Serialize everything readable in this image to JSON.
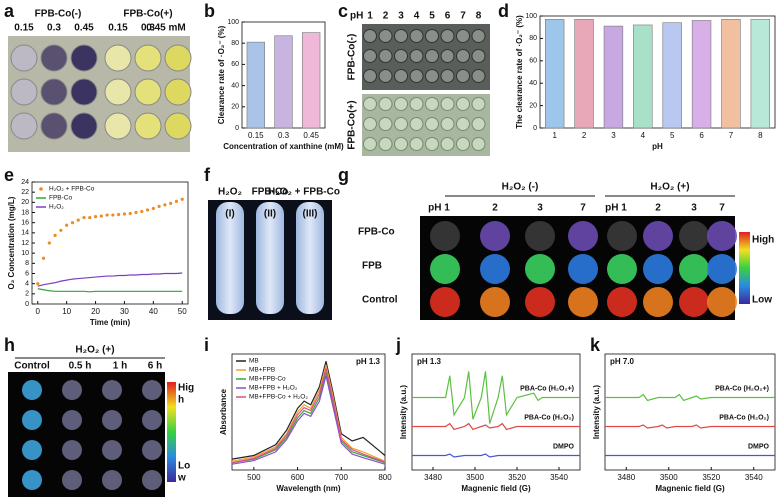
{
  "panel_letters": [
    "a",
    "b",
    "c",
    "d",
    "e",
    "f",
    "g",
    "h",
    "i",
    "j",
    "k"
  ],
  "photos": {
    "a": {
      "groups": [
        "FPB-Co(-)",
        "FPB-Co(+)"
      ],
      "concentrations": [
        "0.15",
        "0.3",
        "0.45",
        "0.15",
        "0.3",
        "0.45 mM"
      ]
    },
    "c": {
      "ph_label": "pH",
      "ph": [
        "1",
        "2",
        "3",
        "4",
        "5",
        "6",
        "7",
        "8"
      ],
      "rows": [
        "FPB-Co(-)",
        "FPB-Co(+)"
      ]
    },
    "f": {
      "tubes": [
        "H₂O₂",
        "FPB-Co",
        "H₂O₂ + FPB-Co"
      ],
      "numerals": [
        "(I)",
        "(II)",
        "(III)"
      ]
    },
    "g": {
      "conditions": [
        "H₂O₂ (-)",
        "H₂O₂ (+)"
      ],
      "ph": [
        "pH 1",
        "2",
        "3",
        "7",
        "pH 1",
        "2",
        "3",
        "7"
      ],
      "rows": [
        "FPB-Co",
        "FPB",
        "Control"
      ],
      "scale": [
        "High",
        "Low"
      ]
    },
    "h": {
      "condition": "H₂O₂ (+)",
      "times": [
        "Control",
        "0.5 h",
        "1 h",
        "6 h"
      ],
      "scale_high": [
        "Hig",
        "h"
      ],
      "scale_low": [
        "Lo",
        "w"
      ]
    }
  },
  "chart_data": [
    {
      "type": "bar",
      "categories": [
        "0.15",
        "0.3",
        "0.45"
      ],
      "values": [
        81,
        87,
        90
      ],
      "colors": [
        "#aac4e8",
        "#c8b4e0",
        "#f0b8d8"
      ],
      "ylim": [
        0,
        100
      ],
      "yticks": [
        0,
        20,
        40,
        60,
        80,
        100
      ],
      "xlabel": "Concentration of xanthine (mM)",
      "ylabel": "Clearance rate of ·O₂⁻ (%)"
    },
    {
      "type": "bar",
      "categories": [
        "1",
        "2",
        "3",
        "4",
        "5",
        "6",
        "7",
        "8"
      ],
      "values": [
        97,
        97,
        91,
        92,
        94,
        96,
        97,
        97
      ],
      "colors": [
        "#9ec5ea",
        "#e8a8b8",
        "#c8a8e0",
        "#a8e0c8",
        "#b8c8f0",
        "#d8b0e8",
        "#f0c0a0",
        "#b8e8d8"
      ],
      "ylim": [
        0,
        100
      ],
      "yticks": [
        0,
        20,
        40,
        60,
        80,
        100
      ],
      "xlabel": "pH",
      "ylabel": "The clearance rate of ·O₂⁻ (%)"
    },
    {
      "type": "line",
      "x": [
        0,
        2,
        4,
        6,
        8,
        10,
        12,
        14,
        16,
        18,
        20,
        22,
        24,
        26,
        28,
        30,
        32,
        34,
        36,
        38,
        40,
        42,
        44,
        46,
        48,
        50
      ],
      "xlim": [
        -2,
        52
      ],
      "xticks": [
        0,
        10,
        20,
        30,
        40,
        50
      ],
      "ylim": [
        0,
        24
      ],
      "yticks": [
        0,
        2,
        4,
        6,
        8,
        10,
        12,
        14,
        16,
        18,
        20,
        22,
        24
      ],
      "xlabel": "Time (min)",
      "ylabel": "O₂ Concentration (mg/L)",
      "legend": "upper left",
      "series": [
        {
          "name": "H₂O₂ + FPB-Co",
          "color": "#f08a24",
          "marker": true,
          "values": [
            4,
            9,
            12,
            13.5,
            14.5,
            15.5,
            16,
            16.5,
            17,
            17,
            17.2,
            17.3,
            17.5,
            17.5,
            17.6,
            17.7,
            17.8,
            18,
            18.2,
            18.5,
            18.8,
            19.2,
            19.5,
            19.8,
            20.2,
            20.6
          ]
        },
        {
          "name": "FPB-Co",
          "color": "#2fa82f",
          "values": [
            3,
            2.8,
            2.6,
            2.5,
            2.5,
            2.5,
            2.5,
            2.5,
            2.5,
            2.4,
            2.5,
            2.5,
            2.5,
            2.5,
            2.5,
            2.5,
            2.5,
            2.5,
            2.5,
            2.5,
            2.5,
            2.5,
            2.5,
            2.5,
            2.5,
            2.5
          ]
        },
        {
          "name": "H₂O₂",
          "color": "#7a3fc0",
          "values": [
            3.5,
            3.8,
            4,
            4.2,
            4.5,
            4.7,
            4.9,
            5,
            5.1,
            5.2,
            5.3,
            5.4,
            5.5,
            5.5,
            5.6,
            5.6,
            5.7,
            5.7,
            5.8,
            5.8,
            5.9,
            5.9,
            6,
            6,
            6,
            6.1
          ]
        }
      ]
    },
    {
      "type": "line",
      "x": [
        450,
        500,
        550,
        575,
        600,
        615,
        630,
        650,
        665,
        680,
        700,
        725,
        750,
        800
      ],
      "xlim": [
        450,
        800
      ],
      "xticks": [
        500,
        600,
        700,
        800
      ],
      "ylim": [
        0,
        1.6
      ],
      "xlabel": "Wavelength (nm)",
      "ylabel": "Absorbance",
      "legend": "upper left",
      "annotation": "pH 1.3",
      "series": [
        {
          "name": "MB",
          "color": "#222222",
          "values": [
            0.15,
            0.2,
            0.35,
            0.55,
            0.85,
            0.95,
            0.9,
            1.15,
            1.5,
            1.1,
            0.5,
            0.4,
            0.45,
            0.2
          ]
        },
        {
          "name": "MB+FPB",
          "color": "#f0a030",
          "values": [
            0.12,
            0.18,
            0.32,
            0.5,
            0.8,
            0.9,
            0.85,
            1.1,
            1.45,
            1.05,
            0.45,
            0.3,
            0.25,
            0.12
          ]
        },
        {
          "name": "MB+FPB-Co",
          "color": "#3aa83a",
          "values": [
            0.1,
            0.15,
            0.28,
            0.45,
            0.72,
            0.82,
            0.78,
            1.0,
            1.35,
            0.95,
            0.4,
            0.25,
            0.2,
            0.1
          ]
        },
        {
          "name": "MB+FPB + H₂O₂",
          "color": "#8a4fd0",
          "values": [
            0.08,
            0.13,
            0.25,
            0.42,
            0.68,
            0.78,
            0.74,
            0.95,
            1.3,
            0.9,
            0.37,
            0.22,
            0.17,
            0.08
          ]
        },
        {
          "name": "MB+FPB-Co + H₂O₂",
          "color": "#e0508a",
          "values": [
            0.1,
            0.16,
            0.3,
            0.48,
            0.76,
            0.86,
            0.82,
            1.05,
            1.4,
            1.0,
            0.42,
            0.28,
            0.22,
            0.11
          ]
        }
      ]
    },
    {
      "type": "line",
      "x": [
        3470,
        3480,
        3486,
        3488,
        3490,
        3495,
        3497,
        3499,
        3503,
        3505,
        3507,
        3511,
        3513,
        3515,
        3520,
        3528,
        3530,
        3532,
        3540,
        3550
      ],
      "xlim": [
        3470,
        3550
      ],
      "xticks": [
        3480,
        3500,
        3520,
        3540
      ],
      "ylim": [
        0,
        8
      ],
      "xlabel": "Magnenic field (G)",
      "ylabel": "Intensity (a.u.)",
      "legend": "inline",
      "annotation": "pH 1.3",
      "series": [
        {
          "name": "PBA-Co (H₂O₂+)",
          "color": "#5cc040",
          "values": [
            5,
            5,
            5,
            6.5,
            3.8,
            5,
            6.8,
            3.5,
            5,
            6.8,
            3.2,
            5,
            6.5,
            3.8,
            5,
            5.3,
            4.8,
            5,
            5,
            5
          ]
        },
        {
          "name": "PBA-Co (H₂O₂)",
          "color": "#e04848",
          "values": [
            3,
            3,
            3,
            3.2,
            2.8,
            3,
            3.2,
            2.8,
            3,
            3.1,
            2.9,
            3,
            3.2,
            2.8,
            3,
            3,
            3,
            3,
            3,
            3
          ]
        },
        {
          "name": "DMPO",
          "color": "#4858c8",
          "values": [
            1,
            1,
            1,
            1.1,
            0.9,
            1,
            1,
            1,
            1,
            1.1,
            0.9,
            1,
            1,
            1,
            1,
            1,
            1,
            1,
            1,
            1
          ]
        }
      ]
    },
    {
      "type": "line",
      "x": [
        3470,
        3480,
        3486,
        3488,
        3490,
        3495,
        3497,
        3499,
        3503,
        3505,
        3507,
        3511,
        3513,
        3515,
        3520,
        3528,
        3530,
        3532,
        3540,
        3550
      ],
      "xlim": [
        3470,
        3550
      ],
      "xticks": [
        3480,
        3500,
        3520,
        3540
      ],
      "ylim": [
        0,
        8
      ],
      "xlabel": "Magnenic field (G)",
      "ylabel": "Intensity (a.u.)",
      "legend": "inline",
      "annotation": "pH 7.0",
      "series": [
        {
          "name": "PBA-Co (H₂O₂+)",
          "color": "#5cc040",
          "values": [
            5,
            5,
            5,
            5.2,
            4.8,
            5,
            5,
            5,
            5,
            5.2,
            4.8,
            5,
            5.1,
            4.9,
            5,
            5,
            5,
            5,
            5,
            5
          ]
        },
        {
          "name": "PBA-Co (H₂O₂)",
          "color": "#e04848",
          "values": [
            3,
            3,
            3,
            3.1,
            2.9,
            3,
            3.1,
            2.9,
            3,
            3,
            3,
            3,
            3.1,
            2.9,
            3,
            3,
            3,
            3,
            3,
            3
          ]
        },
        {
          "name": "DMPO",
          "color": "#4858c8",
          "values": [
            1,
            1,
            1,
            1,
            1,
            1,
            1,
            1,
            1,
            1,
            1,
            1,
            1,
            1,
            1,
            1,
            1,
            1,
            1,
            1
          ]
        }
      ]
    }
  ]
}
